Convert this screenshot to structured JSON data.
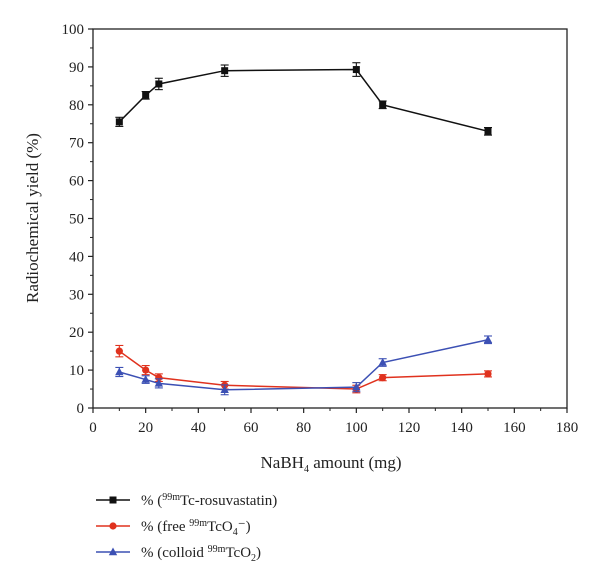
{
  "chart_data": {
    "type": "line",
    "xlabel": {
      "main": "NaBH",
      "sub": "4",
      "rest": " amount (mg)"
    },
    "ylabel": "Radiochemical yield (%)",
    "xlim": [
      0,
      180
    ],
    "ylim": [
      0,
      100
    ],
    "xticks": [
      0,
      20,
      40,
      60,
      80,
      100,
      120,
      140,
      160,
      180
    ],
    "yticks": [
      0,
      10,
      20,
      30,
      40,
      50,
      60,
      70,
      80,
      90,
      100
    ],
    "grid": false,
    "legend_position": "bottom-left",
    "series": [
      {
        "key": "rosuvastatin",
        "legend": {
          "pre": "% (",
          "sup": "99m",
          "mid": "Tc-rosuvastatin)",
          "sub": "",
          "post": ""
        },
        "color": "#111111",
        "marker": "square",
        "x": [
          10,
          20,
          25,
          50,
          100,
          110,
          150
        ],
        "y": [
          75.5,
          82.5,
          85.5,
          89.0,
          89.3,
          80.0,
          73.0
        ],
        "err": [
          1.2,
          1.0,
          1.5,
          1.5,
          1.8,
          1.0,
          1.0
        ]
      },
      {
        "key": "free",
        "legend": {
          "pre": "% (free ",
          "sup": "99m",
          "mid": "TcO",
          "sub": "4",
          "post": "⁻)"
        },
        "color": "#e0321e",
        "marker": "circle",
        "x": [
          10,
          20,
          25,
          50,
          100,
          110,
          150
        ],
        "y": [
          15.0,
          10.0,
          8.0,
          6.0,
          5.0,
          8.0,
          9.0
        ],
        "err": [
          1.5,
          1.2,
          1.0,
          1.0,
          1.0,
          0.8,
          0.8
        ]
      },
      {
        "key": "colloid",
        "legend": {
          "pre": "% (colloid ",
          "sup": "99m",
          "mid": "TcO",
          "sub": "2",
          "post": ")"
        },
        "color": "#3c50b4",
        "marker": "triangle",
        "x": [
          10,
          20,
          25,
          50,
          100,
          110,
          150
        ],
        "y": [
          9.5,
          7.5,
          6.5,
          4.8,
          5.5,
          12.0,
          18.0
        ],
        "err": [
          1.2,
          1.0,
          1.2,
          1.3,
          1.2,
          1.0,
          1.0
        ]
      }
    ]
  }
}
